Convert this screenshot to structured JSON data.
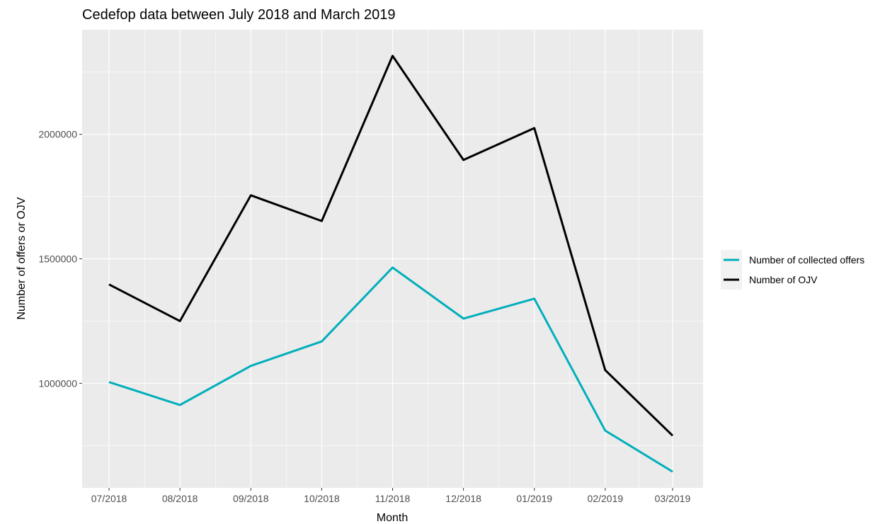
{
  "chart_data": {
    "type": "line",
    "title": "Cedefop data between July 2018 and March 2019",
    "xlabel": "Month",
    "ylabel": "Number of offers or OJV",
    "categories": [
      "07/2018",
      "08/2018",
      "09/2018",
      "10/2018",
      "11/2018",
      "12/2018",
      "01/2019",
      "02/2019",
      "03/2019"
    ],
    "x_positions": [
      0,
      1,
      2,
      3,
      4,
      5,
      6,
      7,
      7.95
    ],
    "yticks": [
      1000000,
      1500000,
      2000000
    ],
    "ytick_labels": [
      "1000000",
      "1500000",
      "2000000"
    ],
    "ylim": [
      580000,
      2420000
    ],
    "grid": true,
    "legend_position": "right",
    "series": [
      {
        "name": "Number of collected offers",
        "color": "#00AFBB",
        "values": [
          1005000,
          913000,
          1070000,
          1168000,
          1465000,
          1260000,
          1340000,
          810000,
          645000
        ]
      },
      {
        "name": "Number of OJV",
        "color": "#000000",
        "values": [
          1397000,
          1250000,
          1755000,
          1652000,
          2315000,
          1897000,
          2025000,
          1053000,
          790000
        ]
      }
    ],
    "colors": {
      "panel": "#EBEBEB",
      "grid": "#FFFFFF"
    }
  }
}
